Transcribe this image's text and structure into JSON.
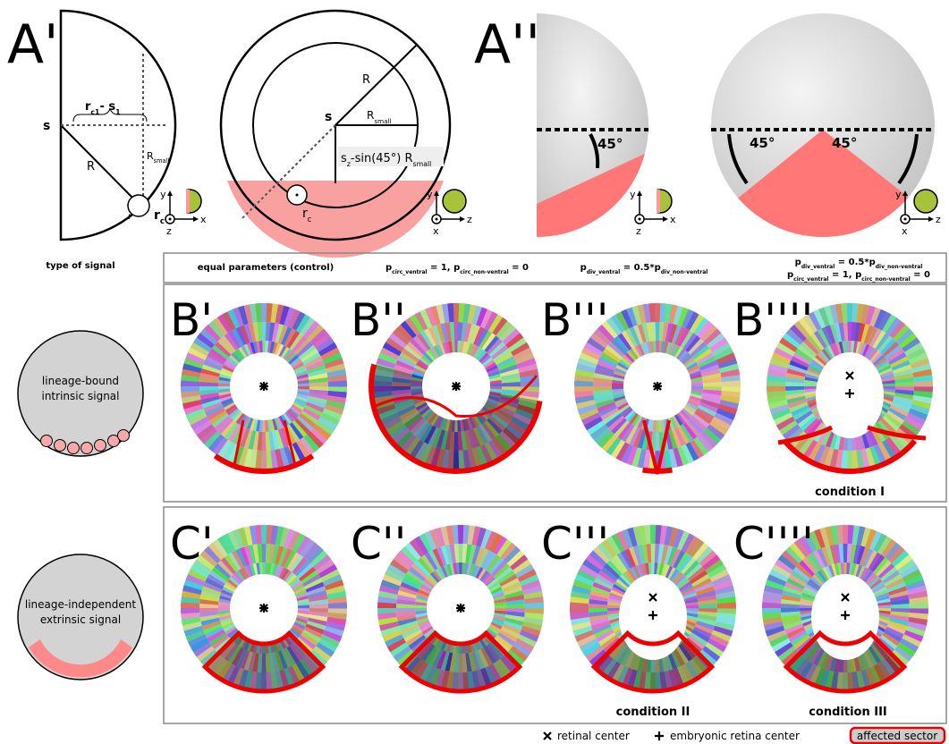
{
  "panels": {
    "a1": "A'",
    "a2": "A''",
    "b": [
      "B'",
      "B''",
      "B'''",
      "B''''"
    ],
    "c": [
      "C'",
      "C''",
      "C'''",
      "C''''"
    ]
  },
  "diagram_a1": {
    "s": "s",
    "R": "R",
    "rc_s": [
      "r",
      "c1",
      "- s",
      "1"
    ],
    "R_small": [
      "R",
      "small"
    ],
    "r": "r",
    "r_c": [
      "r",
      "c"
    ]
  },
  "diagram_a2": {
    "s": "s",
    "R": "R",
    "R_small": [
      "R",
      "small"
    ],
    "offset": [
      "s",
      "z",
      "-sin(45°) R",
      "small"
    ],
    "r_c": [
      "r",
      "c"
    ]
  },
  "angles": [
    "45°",
    "45°",
    "45°"
  ],
  "axes": [
    {
      "v": "y",
      "h": "x",
      "o": "z"
    },
    {
      "v": "y",
      "h": "z",
      "o": "x"
    },
    {
      "v": "y",
      "h": "x",
      "o": "z"
    },
    {
      "v": "y",
      "h": "z",
      "o": "x"
    }
  ],
  "header": {
    "type": "type of signal",
    "conditions": [
      [
        "equal parameters (control)"
      ],
      [
        "p",
        "circ_ventral",
        " = 1, p",
        "circ_non-ventral",
        " = 0"
      ],
      [
        "p",
        "div_ventral",
        " = 0.5*p",
        "div_non-ventral"
      ],
      [
        "p",
        "div_ventral",
        " = 0.5*p",
        "div_non-ventral"
      ]
    ],
    "condition4_line2": [
      "p",
      "circ_ventral",
      " = 1, p",
      "circ_non-ventral",
      " = 0"
    ]
  },
  "signals": [
    [
      "lineage-bound",
      "intrinsic signal"
    ],
    [
      "lineage-independent",
      "extrinsic signal"
    ]
  ],
  "condition_labels": [
    "condition I",
    "condition II",
    "condition III"
  ],
  "legend": {
    "retinal": "retinal center",
    "embryonic": "embryonic retina center",
    "affected": "affected sector"
  }
}
